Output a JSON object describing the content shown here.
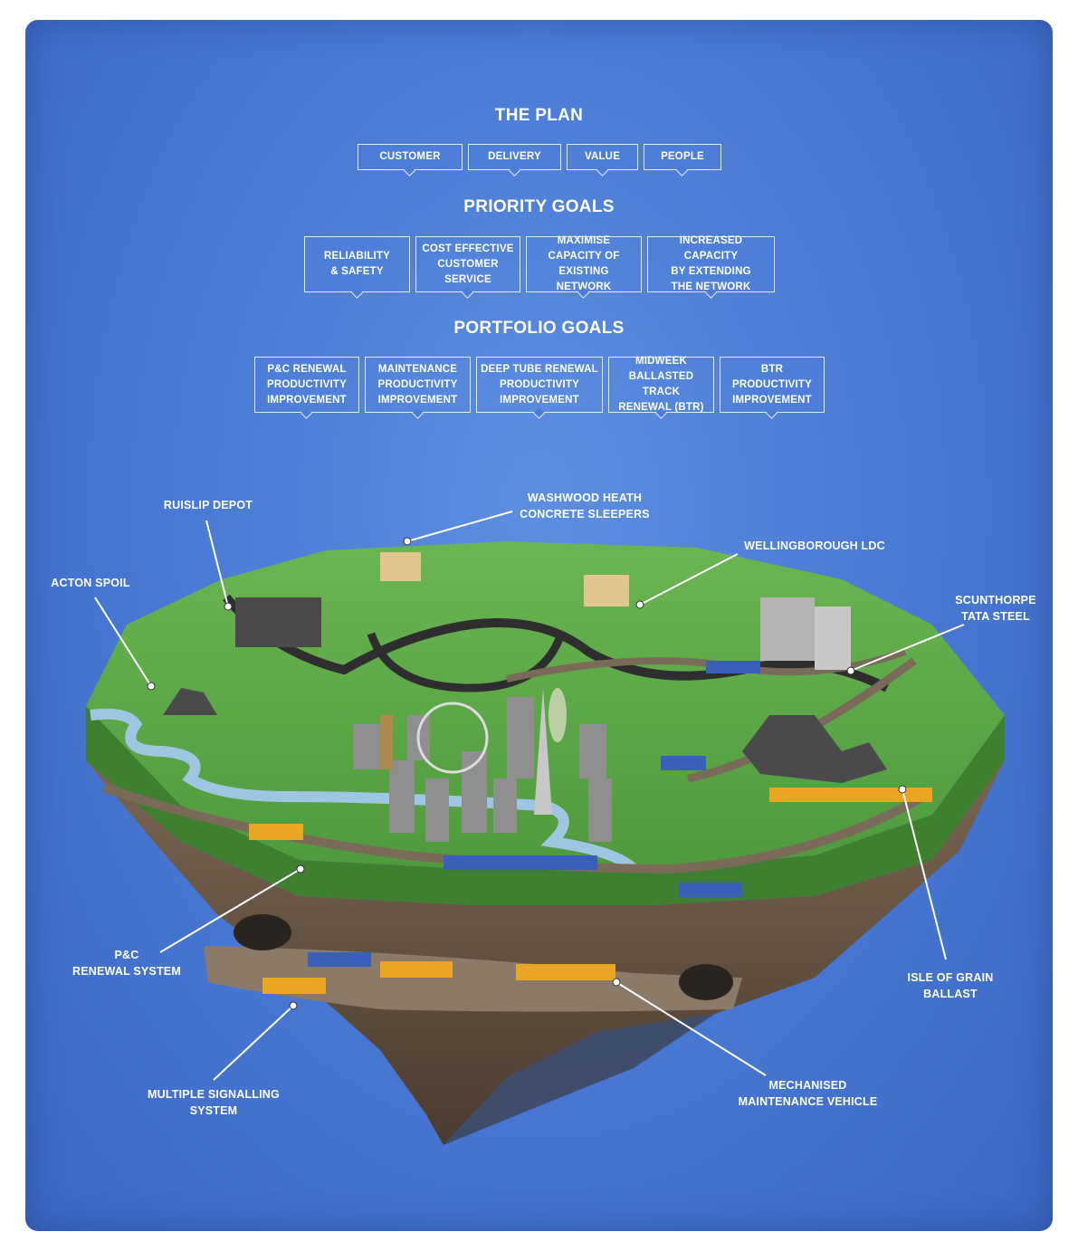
{
  "plan": {
    "title": "THE PLAN",
    "items": [
      "CUSTOMER",
      "DELIVERY",
      "VALUE",
      "PEOPLE"
    ]
  },
  "priority_goals": {
    "title": "PRIORITY GOALS",
    "items": [
      "RELIABILITY\n& SAFETY",
      "COST EFFECTIVE\nCUSTOMER\nSERVICE",
      "MAXIMISE\nCAPACITY OF\nEXISTING NETWORK",
      "INCREASED CAPACITY\nBY EXTENDING\nTHE NETWORK"
    ]
  },
  "portfolio_goals": {
    "title": "PORTFOLIO GOALS",
    "items": [
      "P&C RENEWAL\nPRODUCTIVITY\nIMPROVEMENT",
      "MAINTENANCE\nPRODUCTIVITY\nIMPROVEMENT",
      "DEEP TUBE RENEWAL\nPRODUCTIVITY\nIMPROVEMENT",
      "MIDWEEK\nBALLASTED TRACK\nRENEWAL (BTR)",
      "BTR\nPRODUCTIVITY\nIMPROVEMENT"
    ]
  },
  "locations": {
    "ruislip": "RUISLIP DEPOT",
    "washwood": "WASHWOOD HEATH\nCONCRETE SLEEPERS",
    "wellingborough": "WELLINGBOROUGH LDC",
    "acton": "ACTON SPOIL",
    "scunthorpe": "SCUNTHORPE\nTATA STEEL",
    "pc_renewal": "P&C\nRENEWAL SYSTEM",
    "isle_grain": "ISLE OF GRAIN\nBALLAST",
    "signalling": "MULTIPLE SIGNALLING\nSYSTEM",
    "mmv": "MECHANISED\nMAINTENANCE VEHICLE"
  },
  "colors": {
    "background": "#4a7bd6",
    "grass": "#5fa84a",
    "rock": "#6e5a48",
    "track": "#7a6a5a",
    "train_yellow": "#e8a623",
    "train_blue": "#3a5fb8"
  }
}
